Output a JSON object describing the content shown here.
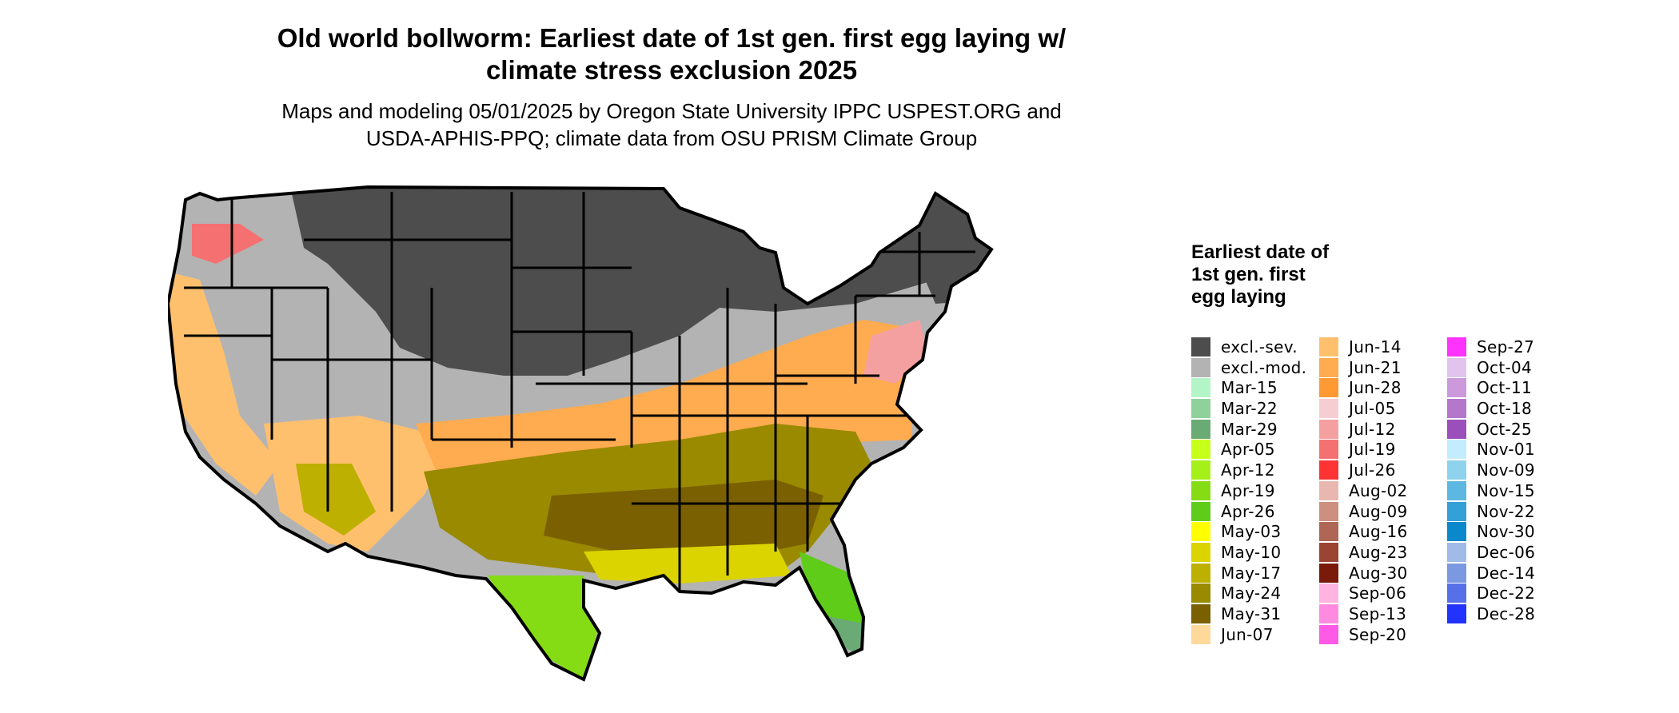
{
  "title_line1": "Old world bollworm: Earliest date of 1st gen. first egg laying w/",
  "title_line2": "climate stress exclusion 2025",
  "subtitle_line1": "Maps and modeling 05/01/2025 by Oregon State University IPPC USPEST.ORG and",
  "subtitle_line2": "USDA-APHIS-PPQ; climate data from OSU PRISM Climate Group",
  "legend": {
    "title": "Earliest date of 1st gen. first egg laying",
    "columns": [
      [
        {
          "label": "excl.-sev.",
          "color": "#4d4d4d"
        },
        {
          "label": "excl.-mod.",
          "color": "#b3b3b3"
        },
        {
          "label": "Mar-15",
          "color": "#b3f5c6"
        },
        {
          "label": "Mar-22",
          "color": "#8fd19a"
        },
        {
          "label": "Mar-29",
          "color": "#6aab75"
        },
        {
          "label": "Apr-05",
          "color": "#c6ff1a"
        },
        {
          "label": "Apr-12",
          "color": "#a6f01a"
        },
        {
          "label": "Apr-19",
          "color": "#85dc14"
        },
        {
          "label": "Apr-26",
          "color": "#5fcc1a"
        },
        {
          "label": "May-03",
          "color": "#ffff00"
        },
        {
          "label": "May-10",
          "color": "#dcd400"
        },
        {
          "label": "May-17",
          "color": "#bdb000"
        },
        {
          "label": "May-24",
          "color": "#9a8a00"
        },
        {
          "label": "May-31",
          "color": "#7a6000"
        },
        {
          "label": "Jun-07",
          "color": "#ffd99a"
        }
      ],
      [
        {
          "label": "Jun-14",
          "color": "#ffc06e"
        },
        {
          "label": "Jun-21",
          "color": "#ffab4f"
        },
        {
          "label": "Jun-28",
          "color": "#ff9933"
        },
        {
          "label": "Jul-05",
          "color": "#f5cdd2"
        },
        {
          "label": "Jul-12",
          "color": "#f5a0a0"
        },
        {
          "label": "Jul-19",
          "color": "#f57070"
        },
        {
          "label": "Jul-26",
          "color": "#ff3333"
        },
        {
          "label": "Aug-02",
          "color": "#e8b8b0"
        },
        {
          "label": "Aug-09",
          "color": "#cc8f80"
        },
        {
          "label": "Aug-16",
          "color": "#b06655"
        },
        {
          "label": "Aug-23",
          "color": "#9b4433"
        },
        {
          "label": "Aug-30",
          "color": "#7a1a0a"
        },
        {
          "label": "Sep-06",
          "color": "#ffb3e0"
        },
        {
          "label": "Sep-13",
          "color": "#ff8ae0"
        },
        {
          "label": "Sep-20",
          "color": "#ff5ae6"
        }
      ],
      [
        {
          "label": "Sep-27",
          "color": "#ff33ff"
        },
        {
          "label": "Oct-04",
          "color": "#e0c4ee"
        },
        {
          "label": "Oct-11",
          "color": "#cc99dd"
        },
        {
          "label": "Oct-18",
          "color": "#b377cc"
        },
        {
          "label": "Oct-25",
          "color": "#9a4fbb"
        },
        {
          "label": "Nov-01",
          "color": "#c4ecff"
        },
        {
          "label": "Nov-09",
          "color": "#8fd2ee"
        },
        {
          "label": "Nov-15",
          "color": "#5cb8e0"
        },
        {
          "label": "Nov-22",
          "color": "#33a0d8"
        },
        {
          "label": "Nov-30",
          "color": "#0a88cc"
        },
        {
          "label": "Dec-06",
          "color": "#a0bbe8"
        },
        {
          "label": "Dec-14",
          "color": "#7a99e0"
        },
        {
          "label": "Dec-22",
          "color": "#5570e8"
        },
        {
          "label": "Dec-28",
          "color": "#2233ff"
        }
      ]
    ]
  }
}
